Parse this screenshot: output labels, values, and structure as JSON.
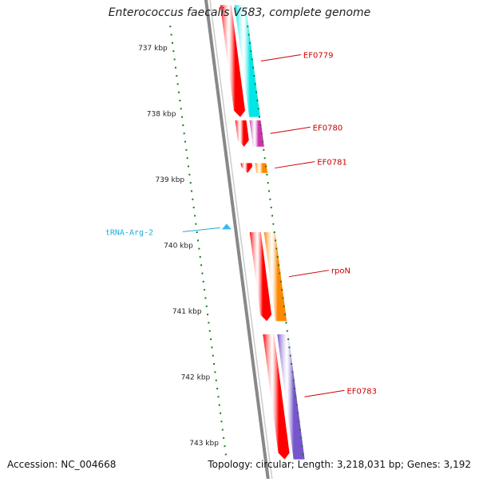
{
  "title": "Enterococcus faecalis V583, complete genome",
  "footer": {
    "accession": "Accession: NC_004668",
    "topology": "Topology: circular; Length: 3,218,031 bp; Genes: 3,192"
  },
  "ticks": [
    {
      "label": "737 kbp",
      "kbp": 737
    },
    {
      "label": "738 kbp",
      "kbp": 738
    },
    {
      "label": "739 kbp",
      "kbp": 739
    },
    {
      "label": "740 kbp",
      "kbp": 740
    },
    {
      "label": "741 kbp",
      "kbp": 741
    },
    {
      "label": "742 kbp",
      "kbp": 742
    },
    {
      "label": "743 kbp",
      "kbp": 743
    }
  ],
  "genes": [
    {
      "label": "EF0779",
      "start_kbp": 736.35,
      "end_kbp": 738.05,
      "color": "#00e6e6"
    },
    {
      "label": "EF0780",
      "start_kbp": 738.1,
      "end_kbp": 738.5,
      "color": "#cc33aa"
    },
    {
      "label": "EF0781",
      "start_kbp": 738.75,
      "end_kbp": 738.9,
      "color": "#ff8800"
    },
    {
      "label": "rpoN",
      "start_kbp": 739.8,
      "end_kbp": 741.15,
      "color": "#ff8800"
    },
    {
      "label": "EF0783",
      "start_kbp": 741.35,
      "end_kbp": 743.25,
      "color": "#7755cc"
    }
  ],
  "trna": [
    {
      "label": "tRNA-Arg-2",
      "position_kbp": 739.72,
      "color": "#33bbee"
    }
  ],
  "colors": {
    "cds": "#ff0000",
    "backbone": "#888888",
    "tick": "#1a7a1a",
    "gene_label": "#cc0000",
    "trna_label": "#22aadd"
  }
}
